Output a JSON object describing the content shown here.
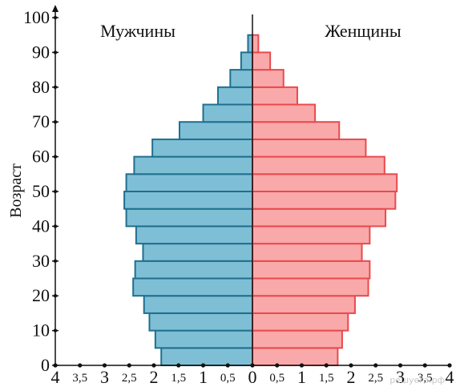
{
  "chart_data": {
    "type": "bar",
    "orientation": "horizontal-pyramid",
    "ylabel": "Возраст",
    "y_ticks": [
      "0",
      "10",
      "20",
      "30",
      "40",
      "50",
      "60",
      "70",
      "80",
      "90",
      "100"
    ],
    "x_ticks": [
      "4",
      "3,5",
      "3",
      "2,5",
      "2",
      "1,5",
      "1",
      "0,5",
      "0",
      "0,5",
      "1",
      "1,5",
      "2",
      "2,5",
      "3",
      "3,5",
      "4"
    ],
    "xlim": [
      -4,
      4
    ],
    "ylim": [
      0,
      100
    ],
    "bin_width": 5,
    "age_bins": [
      0,
      5,
      10,
      15,
      20,
      25,
      30,
      35,
      40,
      45,
      50,
      55,
      60,
      65,
      70,
      75,
      80,
      85,
      90
    ],
    "series": [
      {
        "name": "Мужчины",
        "color": "#7fbfd5",
        "edge": "#1f6f90",
        "values": [
          1.85,
          1.97,
          2.09,
          2.2,
          2.42,
          2.38,
          2.22,
          2.36,
          2.56,
          2.6,
          2.56,
          2.4,
          2.03,
          1.48,
          1.0,
          0.7,
          0.45,
          0.23,
          0.09
        ]
      },
      {
        "name": "Женщины",
        "color": "#f9a9aa",
        "edge": "#e84a4d",
        "values": [
          1.73,
          1.82,
          1.94,
          2.08,
          2.35,
          2.38,
          2.22,
          2.38,
          2.7,
          2.9,
          2.93,
          2.68,
          2.3,
          1.76,
          1.27,
          0.91,
          0.63,
          0.36,
          0.12
        ]
      }
    ],
    "watermark": "решуегэ.рф"
  },
  "ui": {
    "men_label": "Мужчины",
    "women_label": "Женщины",
    "ylabel": "Возраст"
  }
}
